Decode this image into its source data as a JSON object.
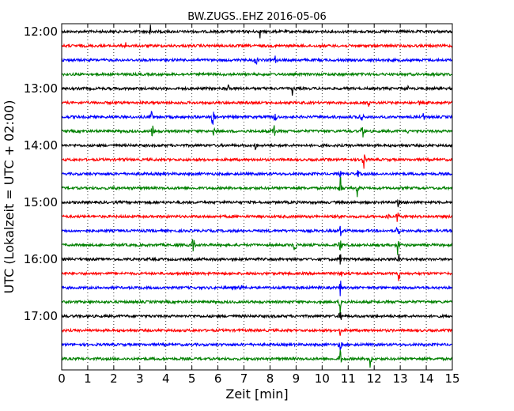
{
  "chart_data": {
    "type": "line",
    "title": "BW.ZUGS..EHZ 2016-05-06",
    "xlabel": "Zeit  [min]",
    "ylabel": "UTC (Lokalzeit = UTC + 02:00)",
    "xlim": [
      0,
      15
    ],
    "x_ticks": [
      "0",
      "1",
      "2",
      "3",
      "4",
      "5",
      "6",
      "7",
      "8",
      "9",
      "10",
      "11",
      "12",
      "13",
      "14",
      "15"
    ],
    "y_ticks": [
      {
        "label": "12:00",
        "trace": 0
      },
      {
        "label": "13:00",
        "trace": 4
      },
      {
        "label": "14:00",
        "trace": 8
      },
      {
        "label": "15:00",
        "trace": 12
      },
      {
        "label": "16:00",
        "trace": 16
      },
      {
        "label": "17:00",
        "trace": 20
      }
    ],
    "grid": "vertical dotted at each minute",
    "trace_minutes": 15,
    "traces": [
      {
        "start": "12:00",
        "color": "#000000",
        "events": [
          {
            "t": 3.4,
            "amp": 0.6
          },
          {
            "t": 7.6,
            "amp": 0.6
          }
        ]
      },
      {
        "start": "12:15",
        "color": "#ff0000",
        "events": [
          {
            "t": 2.45,
            "amp": 0.35
          }
        ]
      },
      {
        "start": "12:30",
        "color": "#0000ff",
        "events": [
          {
            "t": 4.6,
            "amp": 0.3
          },
          {
            "t": 7.45,
            "amp": 0.6
          },
          {
            "t": 8.2,
            "amp": 0.45
          }
        ]
      },
      {
        "start": "12:45",
        "color": "#008000",
        "events": [
          {
            "t": 14.3,
            "amp": 0.3
          }
        ]
      },
      {
        "start": "13:00",
        "color": "#000000",
        "events": [
          {
            "t": 6.4,
            "amp": 0.3
          },
          {
            "t": 8.85,
            "amp": 0.5
          },
          {
            "t": 13.3,
            "amp": 0.2
          }
        ]
      },
      {
        "start": "13:15",
        "color": "#ff0000",
        "events": [
          {
            "t": 11.8,
            "amp": 0.4
          },
          {
            "t": 13.7,
            "amp": 0.3
          }
        ]
      },
      {
        "start": "13:30",
        "color": "#0000ff",
        "events": [
          {
            "t": 3.45,
            "amp": 0.6
          },
          {
            "t": 5.8,
            "amp": 0.9
          },
          {
            "t": 8.2,
            "amp": 0.7
          },
          {
            "t": 11.5,
            "amp": 0.7
          },
          {
            "t": 13.9,
            "amp": 0.3
          }
        ]
      },
      {
        "start": "13:45",
        "color": "#008000",
        "events": [
          {
            "t": 3.5,
            "amp": 0.9
          },
          {
            "t": 5.85,
            "amp": 0.6
          },
          {
            "t": 8.15,
            "amp": 0.8
          },
          {
            "t": 11.55,
            "amp": 0.9
          },
          {
            "t": 13.3,
            "amp": 0.2
          }
        ]
      },
      {
        "start": "14:00",
        "color": "#000000",
        "events": [
          {
            "t": 7.45,
            "amp": 0.4
          }
        ]
      },
      {
        "start": "14:15",
        "color": "#ff0000",
        "events": [
          {
            "t": 2.45,
            "amp": 0.3
          },
          {
            "t": 11.6,
            "amp": 0.9
          }
        ]
      },
      {
        "start": "14:30",
        "color": "#0000ff",
        "events": [
          {
            "t": 10.7,
            "amp": 0.3
          },
          {
            "t": 11.4,
            "amp": 0.5
          }
        ]
      },
      {
        "start": "14:45",
        "color": "#008000",
        "events": [
          {
            "t": 2.0,
            "amp": 0.2
          },
          {
            "t": 10.7,
            "amp": 0.9
          },
          {
            "t": 11.35,
            "amp": 0.8
          }
        ]
      },
      {
        "start": "15:00",
        "color": "#000000",
        "events": [
          {
            "t": 12.9,
            "amp": 0.5
          }
        ]
      },
      {
        "start": "15:15",
        "color": "#ff0000",
        "events": [
          {
            "t": 10.7,
            "amp": 0.4
          },
          {
            "t": 12.5,
            "amp": 0.3
          },
          {
            "t": 12.9,
            "amp": 0.7
          }
        ]
      },
      {
        "start": "15:30",
        "color": "#0000ff",
        "events": [
          {
            "t": 10.7,
            "amp": 0.5
          },
          {
            "t": 12.9,
            "amp": 0.7
          }
        ]
      },
      {
        "start": "15:45",
        "color": "#008000",
        "events": [
          {
            "t": 5.05,
            "amp": 0.9
          },
          {
            "t": 8.95,
            "amp": 0.9
          },
          {
            "t": 10.7,
            "amp": 0.9
          },
          {
            "t": 12.9,
            "amp": 0.9
          }
        ]
      },
      {
        "start": "16:00",
        "color": "#000000",
        "events": [
          {
            "t": 10.7,
            "amp": 0.5
          },
          {
            "t": 12.95,
            "amp": 0.9
          }
        ]
      },
      {
        "start": "16:15",
        "color": "#ff0000",
        "events": [
          {
            "t": 10.7,
            "amp": 0.5
          },
          {
            "t": 12.95,
            "amp": 0.7
          }
        ]
      },
      {
        "start": "16:30",
        "color": "#0000ff",
        "events": [
          {
            "t": 6.9,
            "amp": 0.5
          },
          {
            "t": 10.7,
            "amp": 0.6
          }
        ]
      },
      {
        "start": "16:45",
        "color": "#008000",
        "events": [
          {
            "t": 10.7,
            "amp": 0.9
          }
        ]
      },
      {
        "start": "17:00",
        "color": "#000000",
        "events": [
          {
            "t": 10.7,
            "amp": 0.6
          }
        ]
      },
      {
        "start": "17:15",
        "color": "#ff0000",
        "events": [
          {
            "t": 10.7,
            "amp": 0.5
          }
        ]
      },
      {
        "start": "17:30",
        "color": "#0000ff",
        "events": [
          {
            "t": 10.7,
            "amp": 0.6
          }
        ]
      },
      {
        "start": "17:45",
        "color": "#008000",
        "events": [
          {
            "t": 10.7,
            "amp": 0.9
          },
          {
            "t": 11.85,
            "amp": 0.8
          }
        ]
      }
    ]
  }
}
